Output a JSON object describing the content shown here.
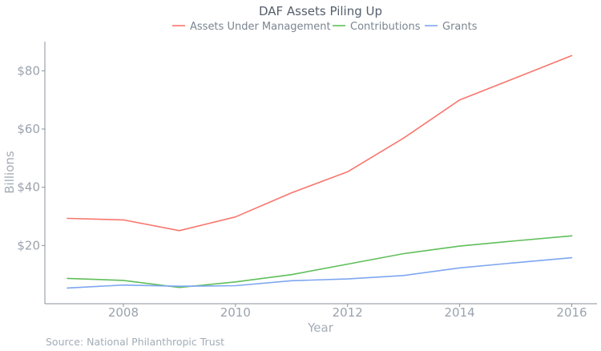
{
  "chart_data": {
    "type": "line",
    "title": "DAF Assets Piling Up",
    "xlabel": "Year",
    "ylabel": "Billions",
    "source": "Source: National Philanthropic Trust",
    "x": [
      2007,
      2008,
      2009,
      2010,
      2011,
      2012,
      2013,
      2014,
      2015,
      2016
    ],
    "xlim": [
      2006.6,
      2016.45
    ],
    "ylim": [
      0,
      90
    ],
    "xticks": [
      2008,
      2010,
      2012,
      2014,
      2016
    ],
    "xtick_labels": [
      "2008",
      "2010",
      "2012",
      "2014",
      "2016"
    ],
    "yticks": [
      20,
      40,
      60,
      80
    ],
    "ytick_labels": [
      "$20",
      "$40",
      "$60",
      "$80"
    ],
    "grid": false,
    "legend_position": "top-center",
    "series": [
      {
        "name": "Assets Under Management",
        "color": "#f8766d",
        "values": [
          29.3,
          28.8,
          25.1,
          29.8,
          38.1,
          45.3,
          56.9,
          70.0,
          77.6,
          85.2
        ]
      },
      {
        "name": "Contributions",
        "color": "#5fbf5a",
        "values": [
          8.7,
          8.0,
          5.6,
          7.5,
          10.0,
          13.6,
          17.2,
          19.8,
          21.6,
          23.3
        ]
      },
      {
        "name": "Grants",
        "color": "#7ea6f0",
        "values": [
          5.4,
          6.4,
          6.0,
          6.2,
          7.9,
          8.5,
          9.7,
          12.3,
          14.1,
          15.8
        ]
      }
    ]
  }
}
